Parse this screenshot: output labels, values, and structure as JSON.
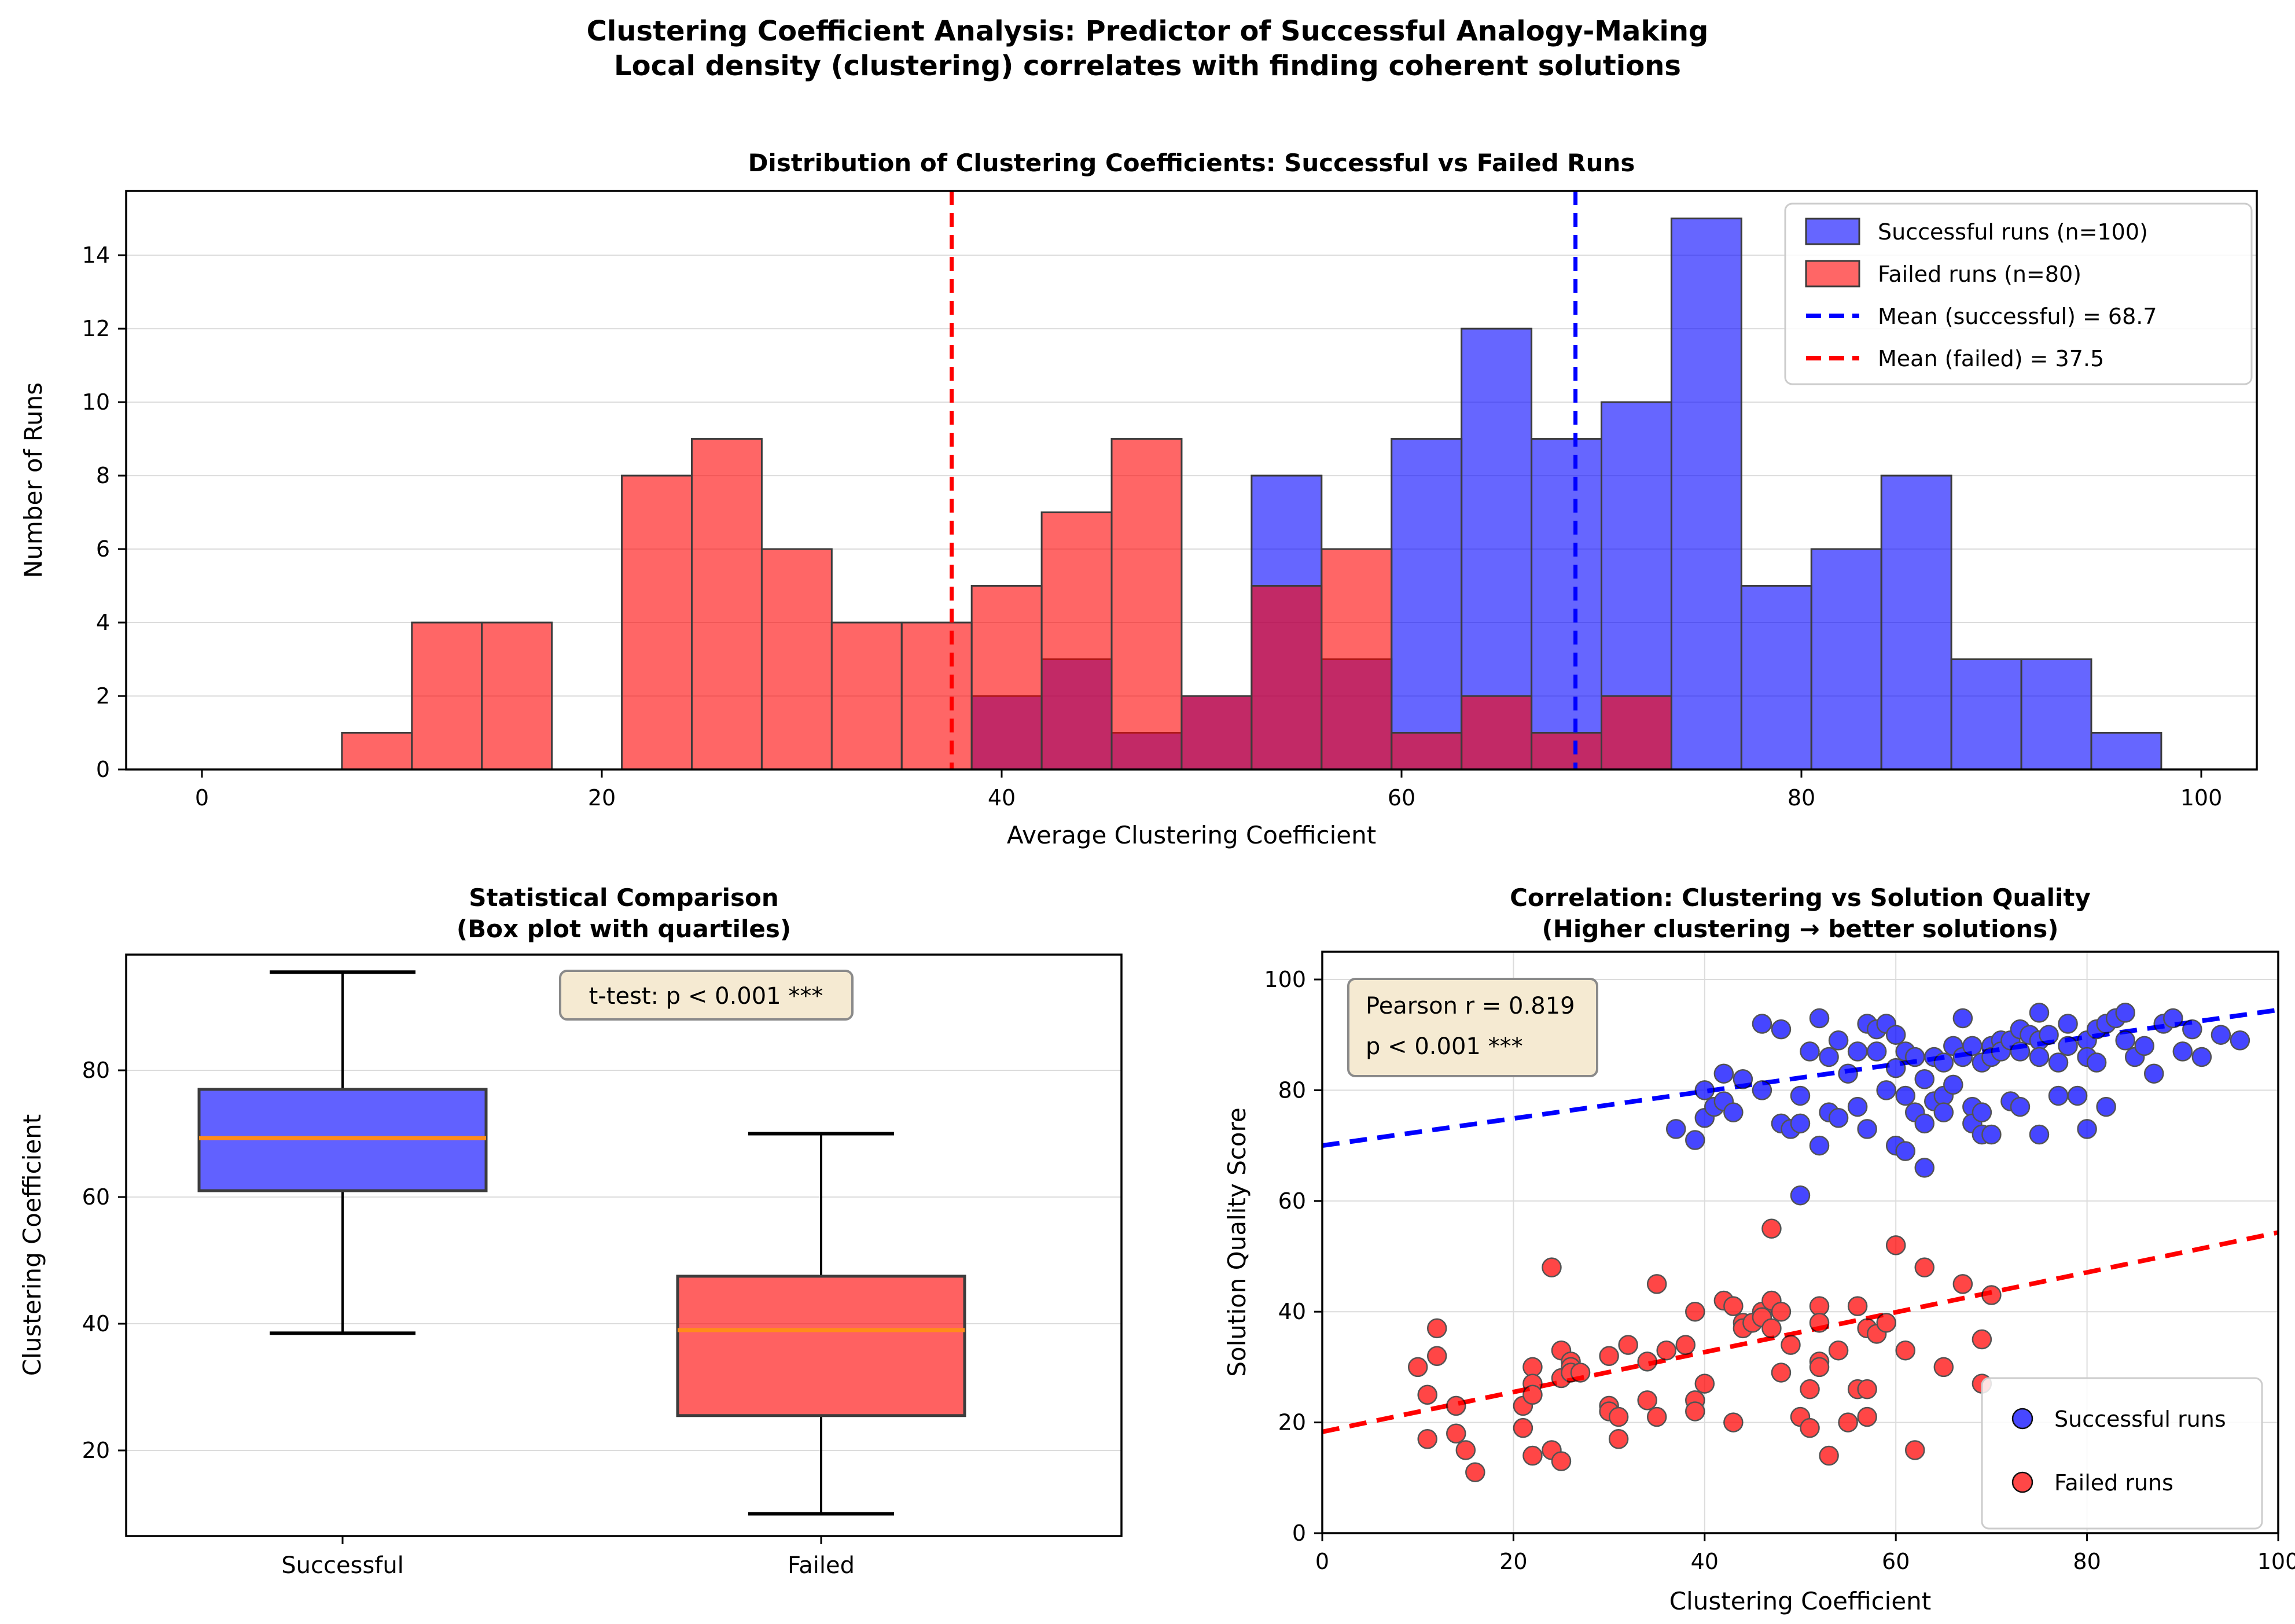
{
  "suptitle": {
    "line1": "Clustering Coefficient Analysis: Predictor of Successful Analogy-Making",
    "line2": "Local density (clustering) correlates with finding coherent solutions"
  },
  "colors": {
    "successful": "#0000ff",
    "failed": "#ff0000",
    "successful_legend_fill": "#6464f0",
    "failed_legend_fill": "#f96b6b",
    "median": "#ff8c1a",
    "annotation_bg": "#f5ead2",
    "annotation_border": "#8a8a8a",
    "grid": "#dcdcdc",
    "bar_edge": "#3c3c3c",
    "marker_edge": "#111111"
  },
  "chart_data": [
    {
      "type": "histogram",
      "title": "Distribution of Clustering Coefficients: Successful vs Failed Runs",
      "xlabel": "Average Clustering Coefficient",
      "ylabel": "Number of Runs",
      "bin_width": 3.5,
      "xticks": [
        0,
        20,
        40,
        60,
        80,
        100
      ],
      "yticks": [
        0,
        2,
        4,
        6,
        8,
        10,
        12,
        14
      ],
      "xlim": [
        -3.8,
        102.8
      ],
      "ylim": [
        0,
        15.75
      ],
      "legend_position": "upper right",
      "series": [
        {
          "name": "Successful runs (n=100)",
          "color_key": "successful",
          "bins": [
            [
              38.5,
              2
            ],
            [
              42,
              3
            ],
            [
              45.5,
              1
            ],
            [
              49,
              2
            ],
            [
              52.5,
              8
            ],
            [
              56,
              3
            ],
            [
              59.5,
              9
            ],
            [
              63,
              12
            ],
            [
              66.5,
              9
            ],
            [
              70,
              10
            ],
            [
              73.5,
              15
            ],
            [
              77,
              5
            ],
            [
              80.5,
              6
            ],
            [
              84,
              8
            ],
            [
              87.5,
              3
            ],
            [
              91,
              3
            ],
            [
              94.5,
              1
            ]
          ]
        },
        {
          "name": "Failed runs (n=80)",
          "color_key": "failed",
          "bins": [
            [
              7,
              1
            ],
            [
              10.5,
              4
            ],
            [
              14,
              4
            ],
            [
              21,
              8
            ],
            [
              24.5,
              9
            ],
            [
              28,
              6
            ],
            [
              31.5,
              4
            ],
            [
              35,
              4
            ],
            [
              38.5,
              5
            ],
            [
              42,
              7
            ],
            [
              45.5,
              9
            ],
            [
              49,
              2
            ],
            [
              52.5,
              5
            ],
            [
              56,
              6
            ],
            [
              59.5,
              1
            ],
            [
              63,
              2
            ],
            [
              66.5,
              1
            ],
            [
              70,
              2
            ]
          ]
        }
      ],
      "mean_lines": [
        {
          "label": "Mean (successful) = 68.7",
          "value": 68.7,
          "color_key": "successful"
        },
        {
          "label": "Mean (failed) = 37.5",
          "value": 37.5,
          "color_key": "failed"
        }
      ]
    },
    {
      "type": "boxplot",
      "title_line1": "Statistical Comparison",
      "title_line2": "(Box plot with quartiles)",
      "ylabel": "Clustering Coefficient",
      "annotation": "t-test: p < 0.001 ***",
      "yticks": [
        20,
        40,
        60,
        80
      ],
      "ylim": [
        6.5,
        98.5
      ],
      "categories": [
        "Successful",
        "Failed"
      ],
      "stats": [
        {
          "label": "Successful",
          "color_key": "successful",
          "whislo": 38.5,
          "q1": 61.0,
          "med": 69.3,
          "q3": 77.0,
          "whishi": 95.5
        },
        {
          "label": "Failed",
          "color_key": "failed",
          "whislo": 10.0,
          "q1": 25.5,
          "med": 39.0,
          "q3": 47.5,
          "whishi": 70.0
        }
      ]
    },
    {
      "type": "scatter",
      "title_line1": "Correlation: Clustering vs Solution Quality",
      "title_line2": "(Higher clustering → better solutions)",
      "xlabel": "Clustering Coefficient",
      "ylabel": "Solution Quality Score",
      "annotation_line1": "Pearson r = 0.819",
      "annotation_line2": "p < 0.001 ***",
      "xticks": [
        0,
        20,
        40,
        60,
        80,
        100
      ],
      "yticks": [
        0,
        20,
        40,
        60,
        80,
        100
      ],
      "xlim": [
        0,
        100
      ],
      "ylim": [
        0,
        105
      ],
      "legend_position": "lower right",
      "series": [
        {
          "name": "Successful runs",
          "color_key": "successful",
          "points": [
            [
              37,
              73
            ],
            [
              39,
              71
            ],
            [
              40,
              80
            ],
            [
              40,
              75
            ],
            [
              41,
              77
            ],
            [
              42,
              83
            ],
            [
              42,
              78
            ],
            [
              43,
              76
            ],
            [
              44,
              82
            ],
            [
              46,
              92
            ],
            [
              46,
              80
            ],
            [
              48,
              91
            ],
            [
              48,
              74
            ],
            [
              49,
              73
            ],
            [
              50,
              79
            ],
            [
              50,
              74
            ],
            [
              50,
              61
            ],
            [
              51,
              87
            ],
            [
              52,
              93
            ],
            [
              52,
              70
            ],
            [
              53,
              86
            ],
            [
              53,
              76
            ],
            [
              54,
              89
            ],
            [
              54,
              75
            ],
            [
              55,
              83
            ],
            [
              56,
              87
            ],
            [
              56,
              77
            ],
            [
              57,
              92
            ],
            [
              57,
              73
            ],
            [
              58,
              91
            ],
            [
              58,
              87
            ],
            [
              59,
              92
            ],
            [
              59,
              80
            ],
            [
              60,
              90
            ],
            [
              60,
              84
            ],
            [
              60,
              70
            ],
            [
              61,
              87
            ],
            [
              61,
              79
            ],
            [
              61,
              69
            ],
            [
              62,
              86
            ],
            [
              62,
              76
            ],
            [
              63,
              82
            ],
            [
              63,
              74
            ],
            [
              63,
              66
            ],
            [
              64,
              86
            ],
            [
              64,
              78
            ],
            [
              65,
              85
            ],
            [
              65,
              79
            ],
            [
              65,
              76
            ],
            [
              66,
              88
            ],
            [
              66,
              81
            ],
            [
              67,
              93
            ],
            [
              67,
              86
            ],
            [
              68,
              88
            ],
            [
              68,
              77
            ],
            [
              68,
              74
            ],
            [
              69,
              85
            ],
            [
              69,
              76
            ],
            [
              69,
              72
            ],
            [
              70,
              88
            ],
            [
              70,
              86
            ],
            [
              70,
              72
            ],
            [
              71,
              89
            ],
            [
              71,
              87
            ],
            [
              72,
              89
            ],
            [
              72,
              78
            ],
            [
              73,
              91
            ],
            [
              73,
              87
            ],
            [
              73,
              77
            ],
            [
              74,
              90
            ],
            [
              75,
              94
            ],
            [
              75,
              89
            ],
            [
              75,
              86
            ],
            [
              75,
              72
            ],
            [
              76,
              90
            ],
            [
              77,
              85
            ],
            [
              77,
              79
            ],
            [
              78,
              92
            ],
            [
              78,
              88
            ],
            [
              79,
              79
            ],
            [
              80,
              89
            ],
            [
              80,
              86
            ],
            [
              80,
              73
            ],
            [
              81,
              91
            ],
            [
              81,
              85
            ],
            [
              82,
              92
            ],
            [
              82,
              77
            ],
            [
              83,
              93
            ],
            [
              84,
              94
            ],
            [
              84,
              89
            ],
            [
              85,
              86
            ],
            [
              86,
              88
            ],
            [
              87,
              83
            ],
            [
              88,
              92
            ],
            [
              89,
              93
            ],
            [
              90,
              87
            ],
            [
              91,
              91
            ],
            [
              92,
              86
            ],
            [
              94,
              90
            ],
            [
              96,
              89
            ]
          ]
        },
        {
          "name": "Failed runs",
          "color_key": "failed",
          "points": [
            [
              10,
              30
            ],
            [
              11,
              25
            ],
            [
              11,
              17
            ],
            [
              12,
              37
            ],
            [
              12,
              32
            ],
            [
              14,
              23
            ],
            [
              14,
              18
            ],
            [
              15,
              15
            ],
            [
              16,
              11
            ],
            [
              21,
              23
            ],
            [
              21,
              19
            ],
            [
              22,
              30
            ],
            [
              22,
              27
            ],
            [
              22,
              25
            ],
            [
              22,
              14
            ],
            [
              24,
              48
            ],
            [
              24,
              15
            ],
            [
              25,
              33
            ],
            [
              25,
              28
            ],
            [
              25,
              13
            ],
            [
              26,
              31
            ],
            [
              26,
              30
            ],
            [
              26,
              29
            ],
            [
              27,
              29
            ],
            [
              30,
              32
            ],
            [
              30,
              23
            ],
            [
              30,
              22
            ],
            [
              31,
              21
            ],
            [
              31,
              17
            ],
            [
              32,
              34
            ],
            [
              34,
              31
            ],
            [
              34,
              24
            ],
            [
              35,
              45
            ],
            [
              35,
              21
            ],
            [
              36,
              33
            ],
            [
              38,
              34
            ],
            [
              39,
              40
            ],
            [
              39,
              24
            ],
            [
              39,
              22
            ],
            [
              40,
              27
            ],
            [
              42,
              42
            ],
            [
              43,
              41
            ],
            [
              43,
              20
            ],
            [
              44,
              38
            ],
            [
              44,
              37
            ],
            [
              45,
              38
            ],
            [
              46,
              40
            ],
            [
              46,
              39
            ],
            [
              47,
              55
            ],
            [
              47,
              42
            ],
            [
              47,
              37
            ],
            [
              48,
              40
            ],
            [
              48,
              29
            ],
            [
              49,
              34
            ],
            [
              50,
              21
            ],
            [
              51,
              26
            ],
            [
              51,
              19
            ],
            [
              52,
              41
            ],
            [
              52,
              38
            ],
            [
              52,
              31
            ],
            [
              52,
              30
            ],
            [
              53,
              14
            ],
            [
              54,
              33
            ],
            [
              55,
              20
            ],
            [
              56,
              41
            ],
            [
              56,
              26
            ],
            [
              57,
              37
            ],
            [
              57,
              26
            ],
            [
              57,
              21
            ],
            [
              58,
              36
            ],
            [
              59,
              38
            ],
            [
              60,
              52
            ],
            [
              61,
              33
            ],
            [
              62,
              15
            ],
            [
              63,
              48
            ],
            [
              65,
              30
            ],
            [
              67,
              45
            ],
            [
              69,
              35
            ],
            [
              69,
              27
            ],
            [
              70,
              43
            ]
          ]
        }
      ],
      "trend_lines": [
        {
          "series": "successful",
          "color_key": "successful",
          "x1": 0,
          "y1": 70.0,
          "x2": 100,
          "y2": 94.5
        },
        {
          "series": "failed",
          "color_key": "failed",
          "x1": 0,
          "y1": 18.3,
          "x2": 100,
          "y2": 54.3
        }
      ]
    }
  ]
}
